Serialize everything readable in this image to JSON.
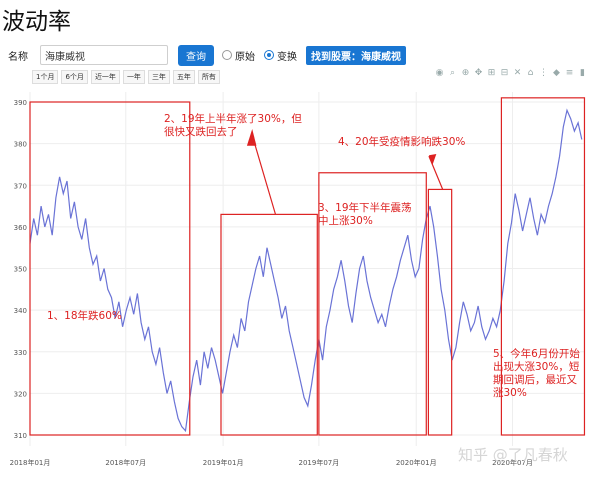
{
  "page": {
    "title": "波动率"
  },
  "search": {
    "name_label": "名称",
    "input_value": "海康威视",
    "query_button": "查询",
    "radio_original": "原始",
    "radio_transform": "变换",
    "found_label": "找到股票：海康威视"
  },
  "range_buttons": [
    "1个月",
    "6个月",
    "近一年",
    "一年",
    "三年",
    "五年",
    "所有"
  ],
  "toolbar_icons": [
    "camera-icon",
    "zoom-icon",
    "zoom-box-icon",
    "pan-icon",
    "zoom-in-icon",
    "zoom-out-icon",
    "autoscale-icon",
    "reset-axes-icon",
    "spike-lines-icon",
    "hover-closest-icon",
    "hover-compare-icon",
    "plotly-logo-icon"
  ],
  "annotations": [
    {
      "id": "a1",
      "text": "1、18年跌60%"
    },
    {
      "id": "a2",
      "text": "2、19年上半年涨了30%，但很快又跌回去了"
    },
    {
      "id": "a3",
      "text": "3、19年下半年震荡中上涨30%"
    },
    {
      "id": "a4",
      "text": "4、20年受疫情影响跌30%"
    },
    {
      "id": "a5",
      "text": "5、今年6月份开始出现大涨30%，短期回调后，最近又涨30%"
    }
  ],
  "watermark": "知乎 @了凡春秋",
  "colors": {
    "line": "#6a73d6",
    "annotation": "#dd2222",
    "accent": "#1976d2"
  },
  "chart_data": {
    "type": "line",
    "ylim": [
      310,
      390
    ],
    "y_ticks": [
      310,
      320,
      330,
      340,
      350,
      360,
      370,
      380,
      390
    ],
    "x_ticks": [
      "2018年01月",
      "2018年07月",
      "2019年01月",
      "2019年07月",
      "2020年01月",
      "2020年07月"
    ],
    "x_range": [
      "2018-01-01",
      "2020-11-15"
    ],
    "grid": true,
    "series": [
      {
        "values": [
          [
            "2018-01-01",
            356
          ],
          [
            "2018-01-08",
            362
          ],
          [
            "2018-01-15",
            358
          ],
          [
            "2018-01-22",
            365
          ],
          [
            "2018-01-29",
            360
          ],
          [
            "2018-02-05",
            363
          ],
          [
            "2018-02-12",
            358
          ],
          [
            "2018-02-19",
            367
          ],
          [
            "2018-02-26",
            372
          ],
          [
            "2018-03-05",
            368
          ],
          [
            "2018-03-12",
            371
          ],
          [
            "2018-03-19",
            362
          ],
          [
            "2018-03-26",
            366
          ],
          [
            "2018-04-02",
            360
          ],
          [
            "2018-04-09",
            357
          ],
          [
            "2018-04-16",
            362
          ],
          [
            "2018-04-23",
            355
          ],
          [
            "2018-04-30",
            351
          ],
          [
            "2018-05-07",
            353
          ],
          [
            "2018-05-14",
            347
          ],
          [
            "2018-05-21",
            350
          ],
          [
            "2018-05-28",
            345
          ],
          [
            "2018-06-04",
            343
          ],
          [
            "2018-06-11",
            338
          ],
          [
            "2018-06-18",
            342
          ],
          [
            "2018-06-25",
            336
          ],
          [
            "2018-07-02",
            340
          ],
          [
            "2018-07-09",
            343
          ],
          [
            "2018-07-16",
            339
          ],
          [
            "2018-07-23",
            344
          ],
          [
            "2018-07-30",
            337
          ],
          [
            "2018-08-06",
            333
          ],
          [
            "2018-08-13",
            336
          ],
          [
            "2018-08-20",
            330
          ],
          [
            "2018-08-27",
            327
          ],
          [
            "2018-09-03",
            331
          ],
          [
            "2018-09-10",
            325
          ],
          [
            "2018-09-17",
            320
          ],
          [
            "2018-09-24",
            323
          ],
          [
            "2018-10-01",
            318
          ],
          [
            "2018-10-08",
            314
          ],
          [
            "2018-10-15",
            312
          ],
          [
            "2018-10-22",
            311
          ],
          [
            "2018-10-29",
            318
          ],
          [
            "2018-11-05",
            324
          ],
          [
            "2018-11-12",
            328
          ],
          [
            "2018-11-19",
            322
          ],
          [
            "2018-11-26",
            330
          ],
          [
            "2018-12-03",
            326
          ],
          [
            "2018-12-10",
            331
          ],
          [
            "2018-12-17",
            328
          ],
          [
            "2018-12-24",
            324
          ],
          [
            "2018-12-31",
            320
          ],
          [
            "2019-01-07",
            325
          ],
          [
            "2019-01-14",
            330
          ],
          [
            "2019-01-21",
            334
          ],
          [
            "2019-01-28",
            331
          ],
          [
            "2019-02-04",
            338
          ],
          [
            "2019-02-11",
            335
          ],
          [
            "2019-02-18",
            342
          ],
          [
            "2019-02-25",
            346
          ],
          [
            "2019-03-04",
            350
          ],
          [
            "2019-03-11",
            353
          ],
          [
            "2019-03-18",
            348
          ],
          [
            "2019-03-25",
            355
          ],
          [
            "2019-04-01",
            351
          ],
          [
            "2019-04-08",
            347
          ],
          [
            "2019-04-15",
            343
          ],
          [
            "2019-04-22",
            338
          ],
          [
            "2019-04-29",
            341
          ],
          [
            "2019-05-06",
            335
          ],
          [
            "2019-05-13",
            331
          ],
          [
            "2019-05-20",
            327
          ],
          [
            "2019-05-27",
            323
          ],
          [
            "2019-06-03",
            319
          ],
          [
            "2019-06-10",
            317
          ],
          [
            "2019-06-17",
            322
          ],
          [
            "2019-06-24",
            328
          ],
          [
            "2019-07-01",
            333
          ],
          [
            "2019-07-08",
            328
          ],
          [
            "2019-07-15",
            336
          ],
          [
            "2019-07-22",
            340
          ],
          [
            "2019-07-29",
            345
          ],
          [
            "2019-08-05",
            348
          ],
          [
            "2019-08-12",
            352
          ],
          [
            "2019-08-19",
            347
          ],
          [
            "2019-08-26",
            341
          ],
          [
            "2019-09-02",
            337
          ],
          [
            "2019-09-09",
            344
          ],
          [
            "2019-09-16",
            350
          ],
          [
            "2019-09-23",
            353
          ],
          [
            "2019-09-30",
            347
          ],
          [
            "2019-10-07",
            343
          ],
          [
            "2019-10-14",
            340
          ],
          [
            "2019-10-21",
            337
          ],
          [
            "2019-10-28",
            339
          ],
          [
            "2019-11-04",
            336
          ],
          [
            "2019-11-11",
            341
          ],
          [
            "2019-11-18",
            345
          ],
          [
            "2019-11-25",
            348
          ],
          [
            "2019-12-02",
            352
          ],
          [
            "2019-12-09",
            355
          ],
          [
            "2019-12-16",
            358
          ],
          [
            "2019-12-23",
            352
          ],
          [
            "2019-12-30",
            348
          ],
          [
            "2020-01-06",
            350
          ],
          [
            "2020-01-13",
            357
          ],
          [
            "2020-01-20",
            362
          ],
          [
            "2020-01-27",
            365
          ],
          [
            "2020-02-03",
            360
          ],
          [
            "2020-02-10",
            353
          ],
          [
            "2020-02-17",
            345
          ],
          [
            "2020-02-24",
            340
          ],
          [
            "2020-03-02",
            333
          ],
          [
            "2020-03-09",
            328
          ],
          [
            "2020-03-16",
            331
          ],
          [
            "2020-03-23",
            337
          ],
          [
            "2020-03-30",
            342
          ],
          [
            "2020-04-06",
            339
          ],
          [
            "2020-04-13",
            335
          ],
          [
            "2020-04-20",
            337
          ],
          [
            "2020-04-27",
            341
          ],
          [
            "2020-05-04",
            336
          ],
          [
            "2020-05-11",
            333
          ],
          [
            "2020-05-18",
            335
          ],
          [
            "2020-05-25",
            338
          ],
          [
            "2020-06-01",
            336
          ],
          [
            "2020-06-08",
            340
          ],
          [
            "2020-06-15",
            347
          ],
          [
            "2020-06-22",
            356
          ],
          [
            "2020-06-29",
            361
          ],
          [
            "2020-07-06",
            368
          ],
          [
            "2020-07-13",
            364
          ],
          [
            "2020-07-20",
            359
          ],
          [
            "2020-07-27",
            363
          ],
          [
            "2020-08-03",
            367
          ],
          [
            "2020-08-10",
            362
          ],
          [
            "2020-08-17",
            358
          ],
          [
            "2020-08-24",
            363
          ],
          [
            "2020-08-31",
            361
          ],
          [
            "2020-09-07",
            365
          ],
          [
            "2020-09-14",
            368
          ],
          [
            "2020-09-21",
            372
          ],
          [
            "2020-09-28",
            377
          ],
          [
            "2020-10-05",
            384
          ],
          [
            "2020-10-12",
            388
          ],
          [
            "2020-10-19",
            386
          ],
          [
            "2020-10-26",
            383
          ],
          [
            "2020-11-02",
            385
          ],
          [
            "2020-11-09",
            381
          ]
        ]
      }
    ]
  }
}
